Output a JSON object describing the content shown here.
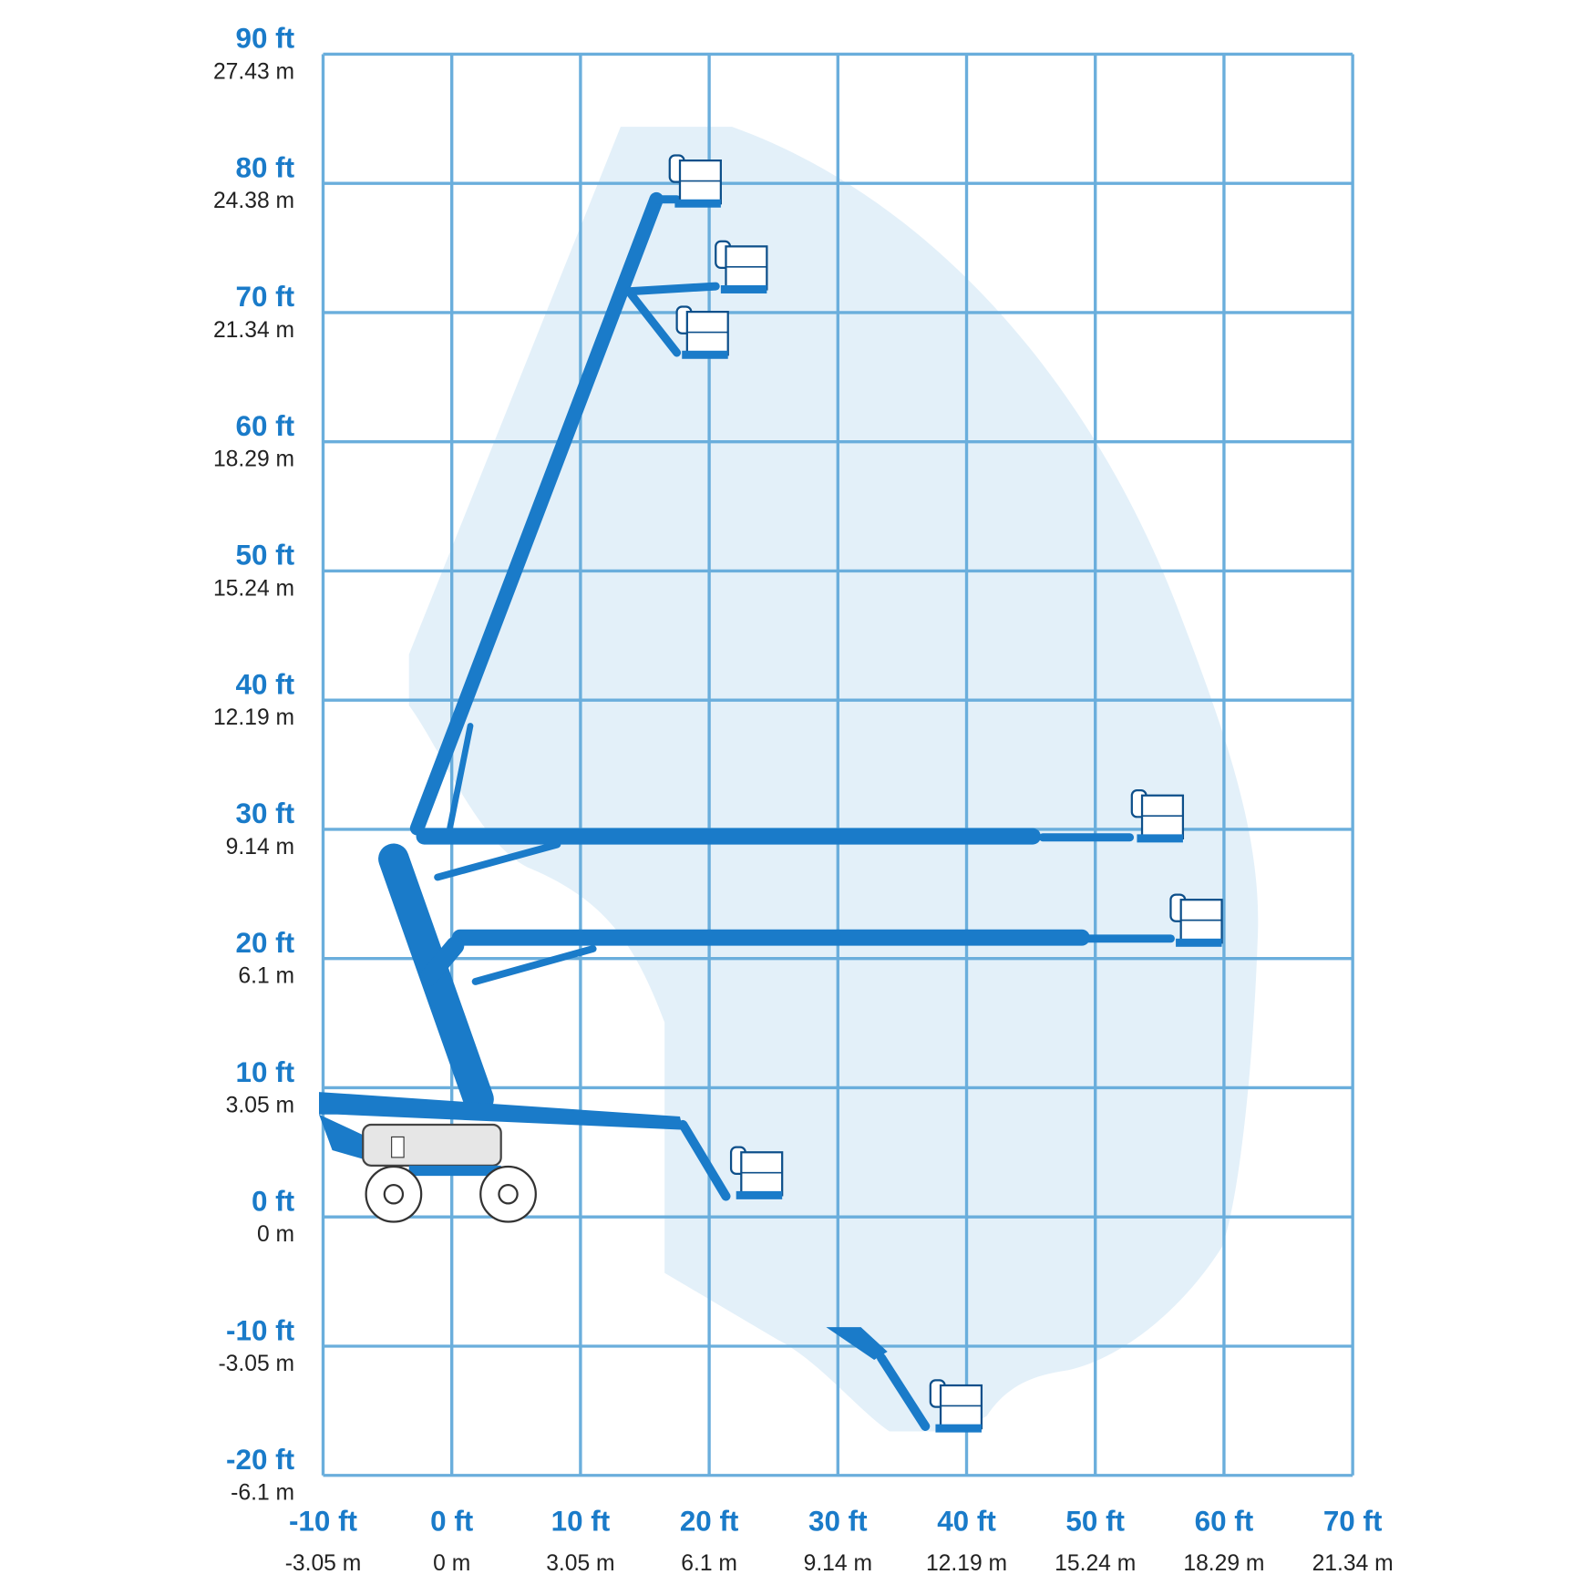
{
  "y_axis": [
    {
      "ft": "90 ft",
      "m": "27.43 m"
    },
    {
      "ft": "80 ft",
      "m": "24.38 m"
    },
    {
      "ft": "70 ft",
      "m": "21.34 m"
    },
    {
      "ft": "60 ft",
      "m": "18.29 m"
    },
    {
      "ft": "50 ft",
      "m": "15.24 m"
    },
    {
      "ft": "40 ft",
      "m": "12.19 m"
    },
    {
      "ft": "30 ft",
      "m": "9.14 m"
    },
    {
      "ft": "20 ft",
      "m": "6.1 m"
    },
    {
      "ft": "10 ft",
      "m": "3.05 m"
    },
    {
      "ft": "0 ft",
      "m": "0 m"
    },
    {
      "ft": "-10 ft",
      "m": "-3.05 m"
    },
    {
      "ft": "-20 ft",
      "m": "-6.1 m"
    }
  ],
  "x_axis": [
    {
      "ft": "-10 ft",
      "m": "-3.05 m"
    },
    {
      "ft": "0 ft",
      "m": "0 m"
    },
    {
      "ft": "10 ft",
      "m": "3.05 m"
    },
    {
      "ft": "20 ft",
      "m": "6.1 m"
    },
    {
      "ft": "30 ft",
      "m": "9.14 m"
    },
    {
      "ft": "40 ft",
      "m": "12.19 m"
    },
    {
      "ft": "50 ft",
      "m": "15.24 m"
    },
    {
      "ft": "60 ft",
      "m": "18.29 m"
    },
    {
      "ft": "70 ft",
      "m": "21.34 m"
    }
  ]
}
